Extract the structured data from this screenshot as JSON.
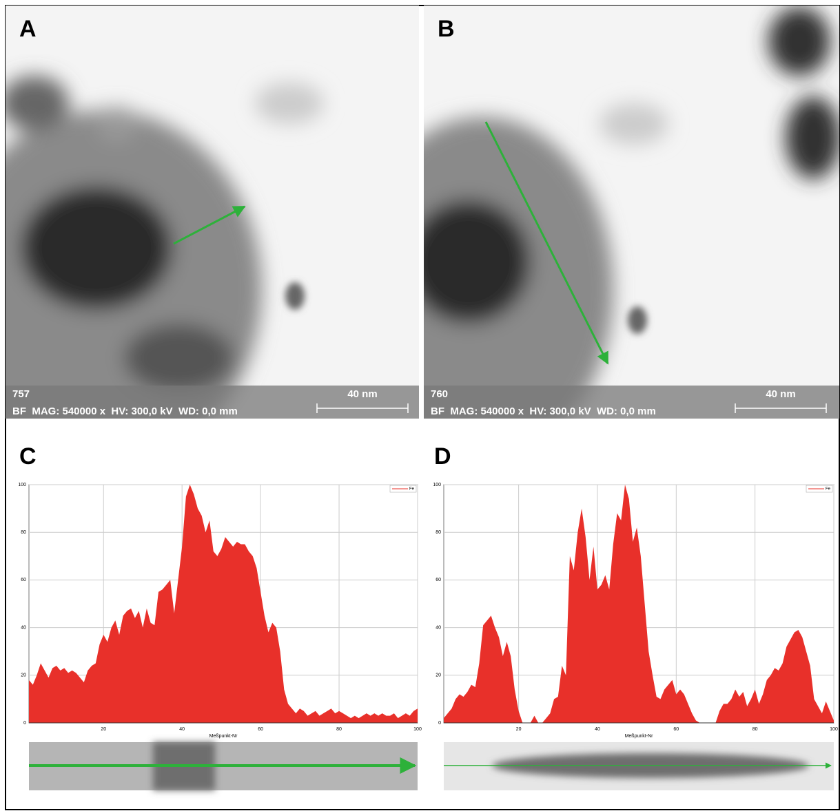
{
  "panels": [
    {
      "label": "A",
      "image_id": "757",
      "info": "BF  MAG: 540000 x  HV: 300,0 kV  WD: 0,0 mm",
      "scale": "40 nm"
    },
    {
      "label": "B",
      "image_id": "760",
      "info": "BF  MAG: 540000 x  HV: 300,0 kV  WD: 0,0 mm",
      "scale": "40 nm"
    }
  ],
  "chart_data": [
    {
      "type": "area",
      "panel_label": "C",
      "xlabel": "Meßpunkt-Nr",
      "x": [
        1,
        2,
        3,
        4,
        5,
        6,
        7,
        8,
        9,
        10,
        11,
        12,
        13,
        14,
        15,
        16,
        17,
        18,
        19,
        20,
        21,
        22,
        23,
        24,
        25,
        26,
        27,
        28,
        29,
        30,
        31,
        32,
        33,
        34,
        35,
        36,
        37,
        38,
        39,
        40,
        41,
        42,
        43,
        44,
        45,
        46,
        47,
        48,
        49,
        50,
        51,
        52,
        53,
        54,
        55,
        56,
        57,
        58,
        59,
        60,
        61,
        62,
        63,
        64,
        65,
        66,
        67,
        68,
        69,
        70,
        71,
        72,
        73,
        74,
        75,
        76,
        77,
        78,
        79,
        80,
        81,
        82,
        83,
        84,
        85,
        86,
        87,
        88,
        89,
        90,
        91,
        92,
        93,
        94,
        95,
        96,
        97,
        98,
        99,
        100
      ],
      "xlim": [
        1,
        100
      ],
      "xticks": [
        20,
        40,
        60,
        80,
        100
      ],
      "ylim": [
        0,
        100
      ],
      "yticks": [
        0,
        20,
        40,
        60,
        80,
        100
      ],
      "grid": true,
      "legend": "upper right",
      "series": [
        {
          "name": "Fe",
          "color": "#e8302a",
          "values": [
            18,
            16,
            20,
            25,
            22,
            19,
            23,
            24,
            22,
            23,
            21,
            22,
            21,
            19,
            17,
            22,
            24,
            25,
            33,
            37,
            34,
            40,
            43,
            37,
            45,
            47,
            48,
            44,
            47,
            40,
            48,
            42,
            41,
            55,
            56,
            58,
            60,
            46,
            60,
            74,
            95,
            100,
            96,
            90,
            87,
            80,
            85,
            72,
            70,
            73,
            78,
            76,
            74,
            76,
            75,
            75,
            72,
            70,
            65,
            55,
            45,
            38,
            42,
            40,
            30,
            14,
            8,
            6,
            4,
            6,
            5,
            3,
            4,
            5,
            3,
            4,
            5,
            6,
            4,
            5,
            4,
            3,
            2,
            3,
            2,
            3,
            4,
            3,
            4,
            3,
            4,
            3,
            3,
            4,
            2,
            3,
            4,
            3,
            5,
            6
          ]
        }
      ]
    },
    {
      "type": "area",
      "panel_label": "D",
      "xlabel": "Meßpunkt-Nr",
      "x": [
        1,
        2,
        3,
        4,
        5,
        6,
        7,
        8,
        9,
        10,
        11,
        12,
        13,
        14,
        15,
        16,
        17,
        18,
        19,
        20,
        21,
        22,
        23,
        24,
        25,
        26,
        27,
        28,
        29,
        30,
        31,
        32,
        33,
        34,
        35,
        36,
        37,
        38,
        39,
        40,
        41,
        42,
        43,
        44,
        45,
        46,
        47,
        48,
        49,
        50,
        51,
        52,
        53,
        54,
        55,
        56,
        57,
        58,
        59,
        60,
        61,
        62,
        63,
        64,
        65,
        66,
        67,
        68,
        69,
        70,
        71,
        72,
        73,
        74,
        75,
        76,
        77,
        78,
        79,
        80,
        81,
        82,
        83,
        84,
        85,
        86,
        87,
        88,
        89,
        90,
        91,
        92,
        93,
        94,
        95,
        96,
        97,
        98,
        99,
        100
      ],
      "xlim": [
        1,
        100
      ],
      "xticks": [
        20,
        40,
        60,
        80,
        100
      ],
      "ylim": [
        0,
        100
      ],
      "yticks": [
        0,
        20,
        40,
        60,
        80,
        100
      ],
      "grid": true,
      "legend": "upper right",
      "series": [
        {
          "name": "Fe",
          "color": "#e8302a",
          "values": [
            2,
            4,
            6,
            10,
            12,
            11,
            13,
            16,
            15,
            25,
            41,
            43,
            45,
            40,
            36,
            28,
            34,
            28,
            14,
            5,
            0,
            0,
            0,
            3,
            0,
            0,
            2,
            4,
            10,
            11,
            24,
            20,
            70,
            64,
            80,
            90,
            78,
            60,
            74,
            56,
            58,
            62,
            56,
            75,
            88,
            85,
            100,
            94,
            76,
            82,
            70,
            50,
            30,
            20,
            11,
            10,
            14,
            16,
            18,
            12,
            14,
            12,
            8,
            4,
            1,
            0,
            0,
            0,
            0,
            0,
            5,
            8,
            8,
            10,
            14,
            11,
            13,
            7,
            10,
            14,
            8,
            12,
            18,
            20,
            23,
            22,
            25,
            32,
            35,
            38,
            39,
            36,
            30,
            24,
            10,
            7,
            4,
            9,
            5,
            1
          ]
        }
      ]
    }
  ]
}
